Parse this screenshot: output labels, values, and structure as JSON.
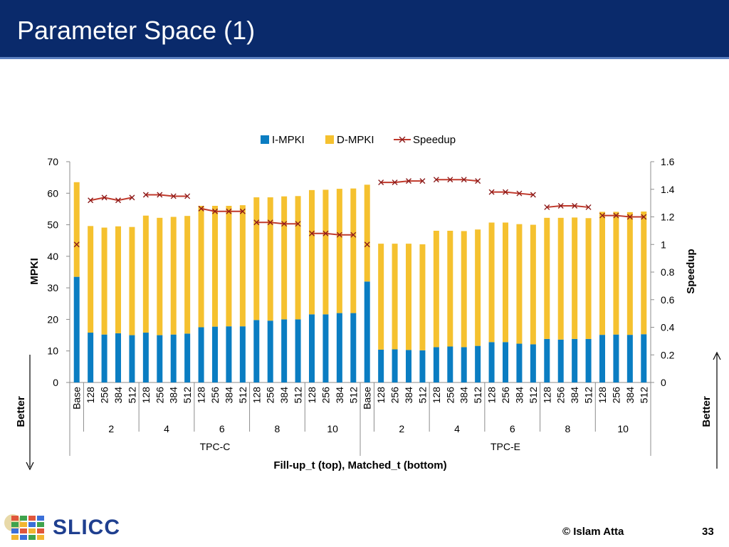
{
  "slide": {
    "title": "Parameter Space (1)",
    "logo_text": "SLICC",
    "footer_credit": "© Islam Atta",
    "page_number": "33",
    "better_label": "Better"
  },
  "chart_data": {
    "type": "bar",
    "stacked": true,
    "legend": {
      "position": "top"
    },
    "xlabel": "Fill-up_t (top), Matched_t (bottom)",
    "ylabel": "MPKI",
    "y2label": "Speedup",
    "ylim": [
      0,
      70
    ],
    "yticks": [
      0,
      10,
      20,
      30,
      40,
      50,
      60,
      70
    ],
    "y2lim": [
      0,
      1.6
    ],
    "y2ticks": [
      "0",
      "0.2",
      "0.4",
      "0.6",
      "0.8",
      "1",
      "1.2",
      "1.4",
      "1.6"
    ],
    "groups": [
      {
        "label": "TPC-C",
        "subgroups": [
          {
            "label": "",
            "bars": [
              "Base"
            ]
          },
          {
            "label": "2",
            "bars": [
              "128",
              "256",
              "384",
              "512"
            ]
          },
          {
            "label": "4",
            "bars": [
              "128",
              "256",
              "384",
              "512"
            ]
          },
          {
            "label": "6",
            "bars": [
              "128",
              "256",
              "384",
              "512"
            ]
          },
          {
            "label": "8",
            "bars": [
              "128",
              "256",
              "384",
              "512"
            ]
          },
          {
            "label": "10",
            "bars": [
              "128",
              "256",
              "384",
              "512"
            ]
          }
        ]
      },
      {
        "label": "TPC-E",
        "subgroups": [
          {
            "label": "",
            "bars": [
              "Base"
            ]
          },
          {
            "label": "2",
            "bars": [
              "128",
              "256",
              "384",
              "512"
            ]
          },
          {
            "label": "4",
            "bars": [
              "128",
              "256",
              "384",
              "512"
            ]
          },
          {
            "label": "6",
            "bars": [
              "128",
              "256",
              "384",
              "512"
            ]
          },
          {
            "label": "8",
            "bars": [
              "128",
              "256",
              "384",
              "512"
            ]
          },
          {
            "label": "10",
            "bars": [
              "128",
              "256",
              "384",
              "512"
            ]
          }
        ]
      }
    ],
    "series": [
      {
        "name": "I-MPKI",
        "color": "#0a7dc2",
        "kind": "bar",
        "values": [
          33.5,
          15.8,
          15.2,
          15.6,
          15.0,
          15.8,
          15.0,
          15.2,
          15.5,
          17.5,
          17.7,
          17.8,
          17.8,
          19.8,
          19.6,
          20.0,
          20.0,
          21.6,
          21.6,
          22.0,
          22.0,
          32.0,
          10.4,
          10.5,
          10.3,
          10.2,
          11.2,
          11.4,
          11.2,
          11.6,
          12.8,
          12.8,
          12.3,
          12.1,
          13.8,
          13.6,
          13.8,
          13.8,
          15.1,
          15.2,
          15.1,
          15.3
        ]
      },
      {
        "name": "D-MPKI",
        "color": "#f5c12f",
        "kind": "bar",
        "values": [
          30.0,
          33.8,
          33.9,
          33.9,
          34.3,
          37.1,
          37.2,
          37.3,
          37.3,
          38.5,
          38.3,
          38.2,
          38.4,
          38.9,
          39.1,
          39.0,
          39.1,
          39.4,
          39.5,
          39.4,
          39.5,
          30.7,
          33.6,
          33.5,
          33.7,
          33.6,
          36.9,
          36.7,
          36.8,
          36.9,
          37.9,
          37.9,
          37.9,
          37.9,
          38.4,
          38.6,
          38.5,
          38.3,
          39.0,
          38.9,
          38.9,
          38.9
        ]
      },
      {
        "name": "Speedup",
        "color": "#c0392b",
        "kind": "line",
        "axis": "right",
        "values": [
          1.0,
          1.32,
          1.34,
          1.32,
          1.34,
          1.36,
          1.36,
          1.35,
          1.35,
          1.26,
          1.24,
          1.24,
          1.24,
          1.16,
          1.16,
          1.15,
          1.15,
          1.08,
          1.08,
          1.07,
          1.07,
          1.0,
          1.45,
          1.45,
          1.46,
          1.46,
          1.47,
          1.47,
          1.47,
          1.46,
          1.38,
          1.38,
          1.37,
          1.36,
          1.27,
          1.28,
          1.28,
          1.27,
          1.21,
          1.21,
          1.2,
          1.2
        ]
      }
    ]
  }
}
